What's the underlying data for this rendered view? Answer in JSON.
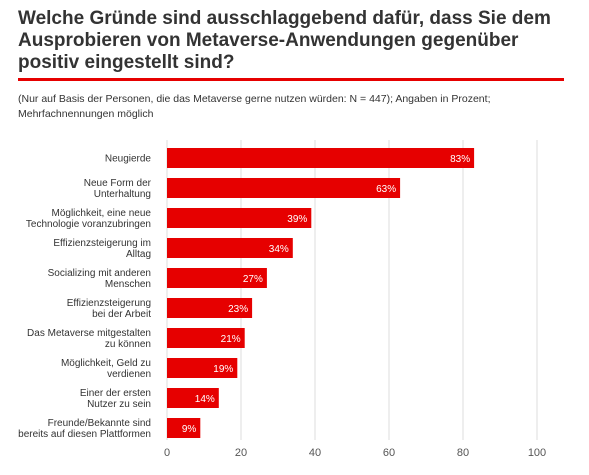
{
  "title": "Welche Gründe sind ausschlaggebend dafür, dass Sie dem Ausprobieren von Metaverse-Anwendungen gegenüber positiv eingestellt sind?",
  "subtitle": "(Nur auf Basis der Personen, die das Metaverse gerne nutzen würden: N = 447); Angaben in Prozent; Mehrfachnennungen möglich",
  "colors": {
    "bar": "#e60000",
    "rule": "#e60000",
    "grid": "#dddddd",
    "text": "#333333"
  },
  "chart_data": {
    "type": "bar",
    "orientation": "horizontal",
    "categories": [
      [
        "Neugierde"
      ],
      [
        "Neue Form der",
        "Unterhaltung"
      ],
      [
        "Möglichkeit, eine neue",
        "Technologie voranzubringen"
      ],
      [
        "Effizienzsteigerung im",
        "Alltag"
      ],
      [
        "Socializing mit anderen",
        "Menschen"
      ],
      [
        "Effizienzsteigerung",
        "bei der Arbeit"
      ],
      [
        "Das Metaverse mitgestalten",
        "zu können"
      ],
      [
        "Möglichkeit, Geld zu",
        "verdienen"
      ],
      [
        "Einer der ersten",
        "Nutzer zu sein"
      ],
      [
        "Freunde/Bekannte sind",
        "bereits auf diesen Plattformen"
      ]
    ],
    "values": [
      83,
      63,
      39,
      34,
      27,
      23,
      21,
      19,
      14,
      9
    ],
    "value_labels": [
      "83%",
      "63%",
      "39%",
      "34%",
      "27%",
      "23%",
      "21%",
      "19%",
      "14%",
      "9%"
    ],
    "xlim": [
      0,
      100
    ],
    "xticks": [
      0,
      20,
      40,
      60,
      80,
      100
    ],
    "grid": true,
    "legend": false
  }
}
